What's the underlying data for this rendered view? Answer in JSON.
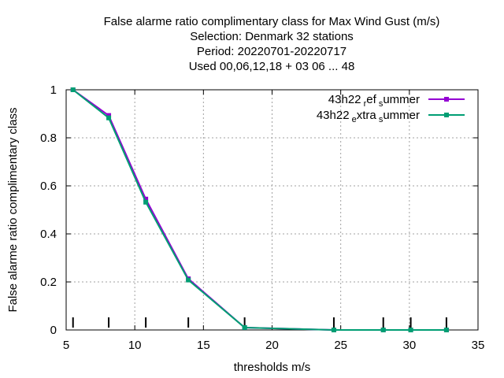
{
  "chart_data": {
    "type": "line",
    "title_lines": [
      "False alarme ratio complimentary class  for Max Wind Gust (m/s)",
      "Selection: Denmark     32 stations",
      "Period: 20220701-20220717",
      "Used  00,06,12,18  + 03 06 ... 48"
    ],
    "xlabel": "thresholds m/s",
    "ylabel": "False alarme ratio complimentary class",
    "xlim": [
      5,
      35
    ],
    "ylim": [
      0,
      1
    ],
    "xticks": [
      5,
      10,
      15,
      20,
      25,
      30,
      35
    ],
    "yticks": [
      0,
      0.2,
      0.4,
      0.6,
      0.8,
      1
    ],
    "ytick_labels": [
      "0",
      "0.2",
      "0.4",
      "0.6",
      "0.8",
      "1"
    ],
    "grid": true,
    "legend_position": "top-right",
    "threshold_marks": [
      5.5,
      8.1,
      10.8,
      13.9,
      18.0,
      24.5,
      28.1,
      30.1,
      32.7
    ],
    "series": [
      {
        "legend_main_1": "43h22",
        "legend_sub_1": "r",
        "legend_main_2": "ef",
        "legend_sub_2": "s",
        "legend_main_3": "ummer",
        "color": "#9400d3",
        "x": [
          5.5,
          8.1,
          10.8,
          13.9,
          18.0,
          24.5,
          28.1,
          30.1,
          32.7
        ],
        "y": [
          1.0,
          0.893,
          0.545,
          0.213,
          0.01,
          0.0,
          0.0,
          0.0,
          0.0
        ]
      },
      {
        "legend_main_1": "43h22",
        "legend_sub_1": "e",
        "legend_main_2": "xtra",
        "legend_sub_2": "s",
        "legend_main_3": "ummer",
        "color": "#009e73",
        "x": [
          5.5,
          8.1,
          10.8,
          13.9,
          18.0,
          24.5,
          28.1,
          30.1,
          32.7
        ],
        "y": [
          1.0,
          0.883,
          0.532,
          0.208,
          0.01,
          0.0,
          0.0,
          0.0,
          0.0
        ]
      }
    ]
  }
}
